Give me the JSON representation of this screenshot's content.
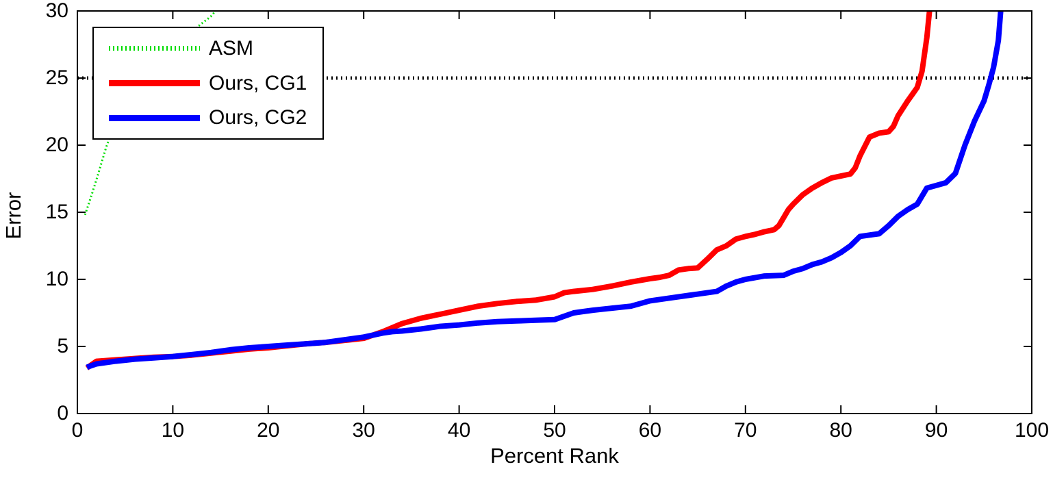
{
  "figure": {
    "background": "#ffffff",
    "axis_color": "#000000"
  },
  "chart_data": {
    "type": "line",
    "title": "",
    "xlabel": "Percent Rank",
    "ylabel": "Error",
    "xlim": [
      0,
      100
    ],
    "ylim": [
      0,
      30
    ],
    "xticks": [
      0,
      10,
      20,
      30,
      40,
      50,
      60,
      70,
      80,
      90,
      100
    ],
    "yticks": [
      0,
      5,
      10,
      15,
      20,
      25,
      30
    ],
    "grid": false,
    "legend_position": "top-left",
    "legend": [
      "ASM",
      "Ours, CG1",
      "Ours, CG2"
    ],
    "reference_line": {
      "y": 25,
      "style": "dotted",
      "color": "#000000"
    },
    "series": [
      {
        "name": "ASM",
        "color": "#00dd00",
        "style": "dotted",
        "width": 3,
        "x": [
          0.8,
          1.5,
          2.2,
          3,
          3.5,
          4.5,
          6,
          8,
          10,
          12,
          14,
          15.2
        ],
        "y": [
          14.8,
          16.3,
          17.9,
          19.8,
          20.8,
          22.3,
          24.0,
          25.9,
          27.3,
          28.5,
          29.6,
          30.6
        ]
      },
      {
        "name": "Ours, CG1",
        "color": "#ff0000",
        "style": "solid",
        "width": 8,
        "x": [
          1,
          2,
          4,
          6,
          8,
          10,
          12,
          14,
          16,
          18,
          20,
          22,
          24,
          26,
          28,
          30,
          31,
          32,
          34,
          36,
          38,
          40,
          42,
          44,
          46,
          48,
          50,
          51,
          52,
          54,
          56,
          58,
          60,
          61,
          62,
          63,
          64,
          65,
          66,
          67,
          68,
          69,
          70,
          71,
          72,
          73,
          73.5,
          74,
          74.5,
          75,
          76,
          77,
          78,
          79,
          80,
          81,
          81.5,
          82,
          83,
          84,
          85,
          85.5,
          86,
          87,
          87.5,
          88,
          88.5,
          89,
          89.4
        ],
        "y": [
          3.4,
          3.9,
          4.0,
          4.1,
          4.2,
          4.25,
          4.35,
          4.5,
          4.65,
          4.8,
          4.9,
          5.05,
          5.2,
          5.3,
          5.45,
          5.6,
          5.85,
          6.1,
          6.7,
          7.1,
          7.4,
          7.7,
          8.0,
          8.2,
          8.35,
          8.45,
          8.7,
          9.0,
          9.1,
          9.25,
          9.5,
          9.8,
          10.05,
          10.15,
          10.3,
          10.7,
          10.8,
          10.85,
          11.5,
          12.2,
          12.5,
          13.0,
          13.2,
          13.35,
          13.55,
          13.7,
          14.0,
          14.6,
          15.2,
          15.6,
          16.3,
          16.8,
          17.2,
          17.55,
          17.7,
          17.85,
          18.3,
          19.2,
          20.6,
          20.9,
          21.0,
          21.4,
          22.2,
          23.3,
          23.8,
          24.3,
          25.5,
          28.0,
          30.8
        ]
      },
      {
        "name": "Ours, CG2",
        "color": "#0000ff",
        "style": "solid",
        "width": 8,
        "x": [
          1,
          2,
          4,
          6,
          8,
          10,
          12,
          14,
          16,
          18,
          20,
          22,
          24,
          26,
          28,
          30,
          32,
          33,
          34,
          36,
          38,
          40,
          42,
          44,
          46,
          48,
          50,
          52,
          53,
          54,
          56,
          58,
          60,
          62,
          64,
          66,
          67,
          68,
          69,
          70,
          72,
          74,
          75,
          76,
          77,
          78,
          79,
          80,
          81,
          82,
          83,
          84,
          85,
          86,
          87,
          88,
          89,
          90,
          91,
          92,
          93,
          94,
          95,
          95.5,
          96,
          96.5,
          96.8
        ],
        "y": [
          3.45,
          3.7,
          3.9,
          4.05,
          4.15,
          4.25,
          4.4,
          4.55,
          4.75,
          4.9,
          5.0,
          5.1,
          5.2,
          5.3,
          5.5,
          5.7,
          6.0,
          6.1,
          6.15,
          6.3,
          6.5,
          6.6,
          6.75,
          6.85,
          6.9,
          6.95,
          7.0,
          7.5,
          7.6,
          7.7,
          7.85,
          8.0,
          8.4,
          8.6,
          8.8,
          9.0,
          9.1,
          9.5,
          9.8,
          10.0,
          10.25,
          10.3,
          10.6,
          10.8,
          11.1,
          11.3,
          11.6,
          12.0,
          12.5,
          13.2,
          13.3,
          13.4,
          14.0,
          14.7,
          15.2,
          15.6,
          16.8,
          17.0,
          17.2,
          17.9,
          20.0,
          21.8,
          23.3,
          24.5,
          25.8,
          27.8,
          30.5
        ]
      }
    ]
  }
}
